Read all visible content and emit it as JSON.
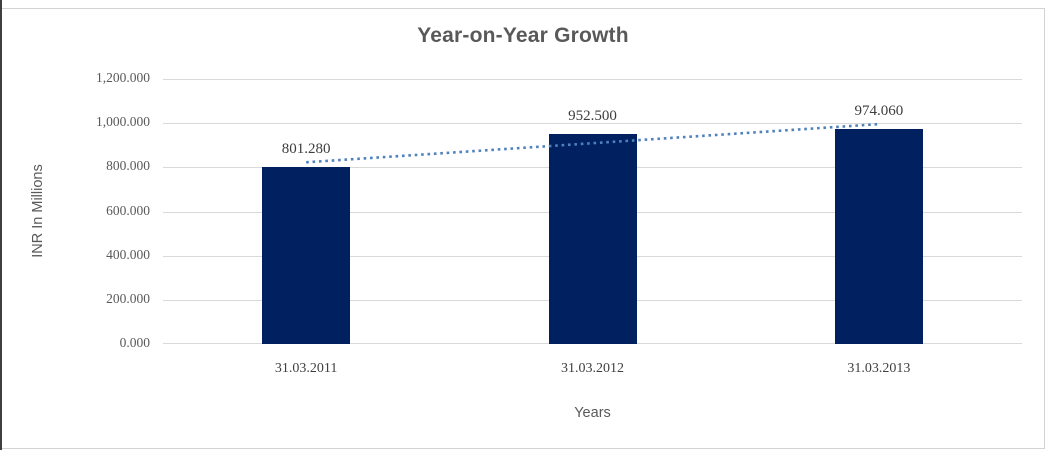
{
  "chart_data": {
    "type": "bar",
    "title": "Year-on-Year Growth",
    "xlabel": "Years",
    "ylabel": "INR In Millions",
    "categories": [
      "31.03.2011",
      "31.03.2012",
      "31.03.2013"
    ],
    "values": [
      801.28,
      952.5,
      974.06
    ],
    "data_labels": [
      "801.280",
      "952.500",
      "974.060"
    ],
    "ylim": [
      0,
      1200
    ],
    "y_tick_step": 200,
    "y_tick_labels": [
      "0.000",
      "200.000",
      "400.000",
      "600.000",
      "800.000",
      "1,000.000",
      "1,200.000"
    ],
    "grid": true,
    "legend": "none",
    "trendline": {
      "type": "linear",
      "style": "dotted",
      "fitted_values": [
        822.89,
        909.28,
        995.67
      ]
    }
  },
  "colors": {
    "bar": "#002060",
    "trendline": "#4f81bd",
    "gridline": "#d9d9d9",
    "title_text": "#595959",
    "tick_text": "#595959",
    "frame_border": "#d3d3d3"
  }
}
